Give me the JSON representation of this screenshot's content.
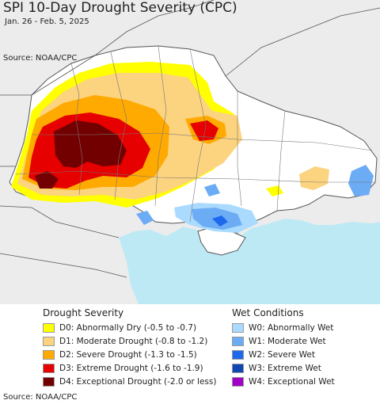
{
  "title": "SPI 10-Day Drought Severity (CPC)",
  "subtitle": "Jan. 26 - Feb. 5, 2025",
  "source_top": "Source: NOAA/CPC",
  "source_bottom": "Source: NOAA/CPC",
  "drought_legend": {
    "heading": "Drought Severity",
    "items": [
      {
        "label": "D0: Abnormally Dry (-0.5 to -0.7)",
        "color": "#ffff00"
      },
      {
        "label": "D1: Moderate Drought (-0.8 to -1.2)",
        "color": "#fcd37f"
      },
      {
        "label": "D2: Severe Drought (-1.3 to -1.5)",
        "color": "#ffaa00"
      },
      {
        "label": "D3: Extreme Drought (-1.6 to -1.9)",
        "color": "#e60000"
      },
      {
        "label": "D4: Exceptional Drought (-2.0 or less)",
        "color": "#730000"
      }
    ]
  },
  "wet_legend": {
    "heading": "Wet Conditions",
    "items": [
      {
        "label": "W0: Abnormally Wet",
        "color": "#aadbff"
      },
      {
        "label": "W1: Moderate Wet",
        "color": "#6cacf5"
      },
      {
        "label": "W2: Severe Wet",
        "color": "#1e69eb"
      },
      {
        "label": "W3: Extreme Wet",
        "color": "#0f46b4"
      },
      {
        "label": "W4: Exceptional Wet",
        "color": "#a000c8"
      }
    ]
  },
  "map_colors": {
    "sea": "#bde9f5",
    "land_outside": "#ececec",
    "ukraine_land": "#ffffff",
    "borders": "#555555"
  }
}
